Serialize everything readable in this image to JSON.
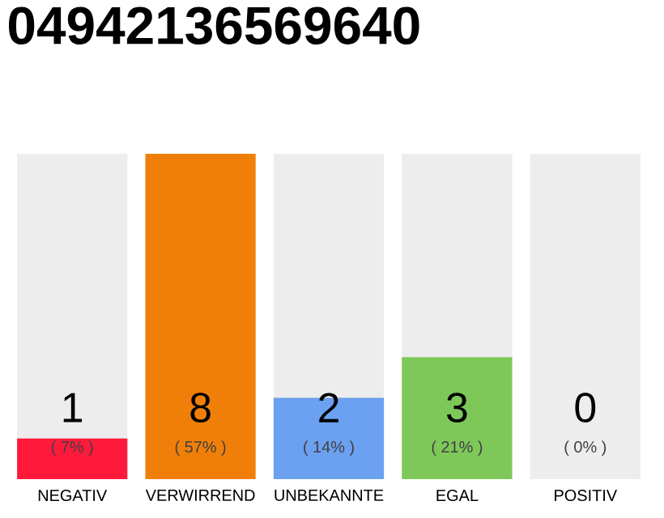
{
  "chart_data": {
    "type": "bar",
    "title": "04942136569640",
    "categories": [
      "NEGATIV",
      "VERWIRREND",
      "UNBEKANNTE",
      "EGAL",
      "POSITIV"
    ],
    "values": [
      1,
      8,
      2,
      3,
      0
    ],
    "colors": [
      "#ff1a3c",
      "#f07f0a",
      "#6ca0f0",
      "#7ec85a",
      "#2eaa4a"
    ],
    "data_labels": true,
    "annotations": [
      "( 7% )",
      "( 57% )",
      "( 14% )",
      "( 21% )",
      "( 0% )"
    ],
    "bands": [
      {
        "axis": "x",
        "from": "NEGATIV",
        "to": "NEGATIV",
        "color": "#ededed"
      },
      {
        "axis": "x",
        "from": "UNBEKANNTE",
        "to": "UNBEKANNTE",
        "color": "#ededed"
      },
      {
        "axis": "x",
        "from": "EGAL",
        "to": "EGAL",
        "color": "#ededed"
      },
      {
        "axis": "x",
        "from": "POSITIV",
        "to": "POSITIV",
        "color": "#ededed"
      }
    ]
  }
}
